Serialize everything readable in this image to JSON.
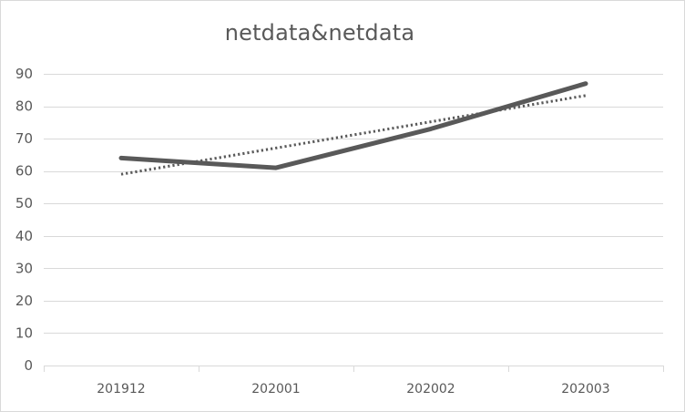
{
  "chart_data": {
    "type": "line",
    "title": "netdata&netdata",
    "xlabel": "",
    "ylabel": "",
    "categories": [
      "201912",
      "202001",
      "202002",
      "202003"
    ],
    "series": [
      {
        "values": [
          64,
          61,
          73,
          87
        ],
        "style": "solid",
        "color": "#595959"
      },
      {
        "values": [
          59,
          67.1,
          75.2,
          83.3
        ],
        "style": "dotted",
        "color": "#595959",
        "kind": "linear-trendline"
      }
    ],
    "ylim": [
      0,
      90
    ],
    "yticks": [
      0,
      10,
      20,
      30,
      40,
      50,
      60,
      70,
      80,
      90
    ],
    "grid": true,
    "legend": "none"
  }
}
